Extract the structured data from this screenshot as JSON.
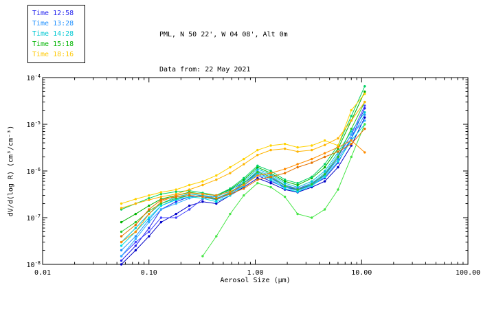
{
  "legend": {
    "items": [
      {
        "label": "Time 12:58",
        "color": "#2222ee"
      },
      {
        "label": "Time 13:28",
        "color": "#1e90ff"
      },
      {
        "label": "Time 14:28",
        "color": "#00c8d2"
      },
      {
        "label": "Time 15:18",
        "color": "#00b400"
      },
      {
        "label": "Time 18:16",
        "color": "#ffc800"
      }
    ]
  },
  "chart_data": {
    "type": "line",
    "title": "PML, N 50 22', W 04 08', Alt 0m",
    "subtitle": "Data from: 22 May 2021",
    "xlabel": "Aerosol Size (μm)",
    "ylabel": "dV/d(log R) (cm³/cm⁻³)",
    "xscale": "log",
    "yscale": "log",
    "xlim": [
      0.01,
      100.0
    ],
    "ylim": [
      1e-08,
      0.0001
    ],
    "x_tick_labels": [
      "0.01",
      "0.10",
      "1.00",
      "10.00",
      "100.00"
    ],
    "y_tick_exponents": [
      -8,
      -7,
      -6,
      -5,
      -4
    ],
    "grid": false,
    "legend_position": "top-left",
    "x": [
      0.055,
      0.075,
      0.1,
      0.13,
      0.18,
      0.24,
      0.32,
      0.43,
      0.58,
      0.78,
      1.05,
      1.4,
      1.9,
      2.5,
      3.4,
      4.5,
      6.0,
      8.0,
      10.7
    ],
    "series": [
      {
        "name": "Time 12:58 scan 1",
        "color": "#2222ee",
        "y": [
          1.2e-08,
          2.5e-08,
          6e-08,
          1.5e-07,
          2.2e-07,
          2.8e-07,
          3e-07,
          2.5e-07,
          3.5e-07,
          5e-07,
          8e-07,
          6e-07,
          4.5e-07,
          4e-07,
          5e-07,
          7e-07,
          1.5e-06,
          5e-06,
          2.2e-05
        ]
      },
      {
        "name": "Time 12:58 scan 2",
        "color": "#0000c8",
        "y": [
          1e-08,
          2e-08,
          4e-08,
          8e-08,
          1.2e-07,
          1.8e-07,
          2.2e-07,
          2e-07,
          3e-07,
          4.5e-07,
          7e-07,
          5.5e-07,
          4e-07,
          3.5e-07,
          4.5e-07,
          6e-07,
          1.2e-06,
          3.5e-06,
          1.4e-05
        ]
      },
      {
        "name": "Time 12:58 scan 3",
        "color": "#4444ff",
        "y": [
          1.5e-08,
          3e-08,
          5e-08,
          1e-07,
          1e-07,
          1.5e-07,
          2.5e-07,
          3e-07,
          4e-07,
          5.5e-07,
          9e-07,
          7e-07,
          5e-07,
          4.2e-07,
          5.5e-07,
          8e-07,
          2e-06,
          6e-06,
          2.5e-05
        ]
      },
      {
        "name": "Time 13:28 scan 1",
        "color": "#1e90ff",
        "y": [
          2e-08,
          4e-08,
          9e-08,
          1.8e-07,
          2.5e-07,
          3e-07,
          2.8e-07,
          2.4e-07,
          3.2e-07,
          5e-07,
          9e-07,
          7e-07,
          4.5e-07,
          3.8e-07,
          5e-07,
          8e-07,
          1.8e-06,
          5e-06,
          1.6e-05
        ]
      },
      {
        "name": "Time 13:28 scan 2",
        "color": "#30b0ff",
        "y": [
          1.5e-08,
          3.5e-08,
          8e-08,
          1.5e-07,
          2e-07,
          2.6e-07,
          3e-07,
          2.6e-07,
          3.5e-07,
          5.5e-07,
          1e-06,
          8e-07,
          5e-07,
          4e-07,
          5.5e-07,
          9e-07,
          2.2e-06,
          6e-06,
          1.2e-05
        ]
      },
      {
        "name": "Time 14:28 scan 1",
        "color": "#00c8d2",
        "y": [
          3e-08,
          6e-08,
          1.2e-07,
          2e-07,
          2.8e-07,
          3.2e-07,
          3e-07,
          2.8e-07,
          3.8e-07,
          6e-07,
          1.1e-06,
          8.5e-07,
          5.5e-07,
          4.5e-07,
          6e-07,
          1e-06,
          2.5e-06,
          7e-06,
          1.8e-05
        ]
      },
      {
        "name": "Time 14:28 scan 2",
        "color": "#00e0e0",
        "y": [
          2.5e-08,
          5e-08,
          1e-07,
          1.8e-07,
          2.4e-07,
          2.8e-07,
          2.6e-07,
          2.2e-07,
          3e-07,
          4.8e-07,
          8.5e-07,
          6.5e-07,
          4.2e-07,
          3.6e-07,
          4.8e-07,
          7.5e-07,
          1.6e-06,
          4.5e-06,
          1e-05
        ]
      },
      {
        "name": "Time 15:18 scan 1",
        "color": "#00b400",
        "y": [
          8e-08,
          1.2e-07,
          1.8e-07,
          2.5e-07,
          3e-07,
          3.5e-07,
          3.2e-07,
          3e-07,
          4e-07,
          6.5e-07,
          1.2e-06,
          9e-07,
          6e-07,
          5e-07,
          7e-07,
          1.2e-06,
          3e-06,
          1.2e-05,
          5e-05
        ]
      },
      {
        "name": "Time 15:18 scan 2",
        "color": "#28c828",
        "y": [
          5e-08,
          8e-08,
          1.4e-07,
          2e-07,
          2.6e-07,
          3e-07,
          2.8e-07,
          2.5e-07,
          3.4e-07,
          5.5e-07,
          9.5e-07,
          7.5e-07,
          4.8e-07,
          4e-07,
          5.2e-07,
          8.5e-07,
          2e-06,
          8e-06,
          3e-05
        ]
      },
      {
        "name": "Time 15:18 scan 3",
        "color": "#46e646",
        "x": [
          0.32,
          0.43,
          0.58,
          0.78,
          1.05,
          1.4,
          1.9,
          2.5,
          3.4,
          4.5,
          6.0,
          8.0,
          10.7
        ],
        "y": [
          1.5e-08,
          4e-08,
          1.2e-07,
          3e-07,
          5.5e-07,
          4.5e-07,
          2.8e-07,
          1.2e-07,
          1e-07,
          1.5e-07,
          4e-07,
          2e-06,
          1e-05
        ]
      },
      {
        "name": "Time 15:18 scan 4",
        "color": "#00d264",
        "y": [
          1.5e-07,
          2e-07,
          2.6e-07,
          3.2e-07,
          3.6e-07,
          3.8e-07,
          3.4e-07,
          3e-07,
          4.2e-07,
          7e-07,
          1.3e-06,
          1e-06,
          6.5e-07,
          5.5e-07,
          7.5e-07,
          1.4e-06,
          3.5e-06,
          1.5e-05,
          6.5e-05
        ]
      },
      {
        "name": "Time 18:16 scan 1",
        "color": "#ffd200",
        "y": [
          2e-07,
          2.5e-07,
          3e-07,
          3.5e-07,
          4e-07,
          5e-07,
          6e-07,
          8e-07,
          1.2e-06,
          1.8e-06,
          2.8e-06,
          3.5e-06,
          3.8e-06,
          3.2e-06,
          3.5e-06,
          4.5e-06,
          3.5e-06,
          2e-05,
          4.5e-05
        ]
      },
      {
        "name": "Time 18:16 scan 2",
        "color": "#ffb400",
        "y": [
          1.6e-07,
          2e-07,
          2.4e-07,
          2.8e-07,
          3.2e-07,
          4e-07,
          5e-07,
          6.5e-07,
          9e-07,
          1.4e-06,
          2.2e-06,
          2.8e-06,
          3e-06,
          2.6e-06,
          2.8e-06,
          3.6e-06,
          5e-06,
          1.2e-05,
          3e-05
        ]
      },
      {
        "name": "Time 18:16 scan 3",
        "color": "#ff8c00",
        "y": [
          3e-08,
          5e-08,
          1.2e-07,
          2.2e-07,
          3e-07,
          3.4e-07,
          3.2e-07,
          3e-07,
          3.6e-07,
          5e-07,
          8e-07,
          9e-07,
          1.1e-06,
          1.4e-06,
          1.8e-06,
          2.4e-06,
          3.2e-06,
          4.5e-06,
          2.5e-06
        ]
      },
      {
        "name": "Time 18:16 scan 4",
        "color": "#e67300",
        "y": [
          4e-08,
          7e-08,
          1.5e-07,
          2.4e-07,
          2.8e-07,
          3e-07,
          2.8e-07,
          2.6e-07,
          3.2e-07,
          4.2e-07,
          6.5e-07,
          7.5e-07,
          9e-07,
          1.2e-06,
          1.5e-06,
          2e-06,
          2.6e-06,
          3.8e-06,
          8e-06
        ]
      }
    ]
  }
}
